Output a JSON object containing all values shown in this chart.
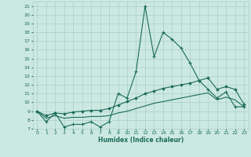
{
  "xlabel": "Humidex (Indice chaleur)",
  "xlim": [
    -0.5,
    23.5
  ],
  "ylim": [
    7,
    21.5
  ],
  "xticks": [
    0,
    1,
    2,
    3,
    4,
    5,
    6,
    7,
    8,
    9,
    10,
    11,
    12,
    13,
    14,
    15,
    16,
    17,
    18,
    19,
    20,
    21,
    22,
    23
  ],
  "yticks": [
    7,
    8,
    9,
    10,
    11,
    12,
    13,
    14,
    15,
    16,
    17,
    18,
    19,
    20,
    21
  ],
  "bg_color": "#cce9e1",
  "grid_color": "#aacfc8",
  "line_color": "#1a6b5a",
  "line1_y": [
    9.0,
    7.8,
    8.8,
    7.2,
    7.5,
    7.5,
    7.8,
    7.2,
    7.8,
    11.0,
    10.5,
    13.5,
    21.0,
    15.2,
    18.0,
    17.2,
    16.2,
    14.5,
    12.5,
    11.5,
    10.5,
    11.2,
    9.5,
    9.5
  ],
  "line2_y": [
    9.0,
    8.5,
    8.8,
    8.7,
    8.9,
    9.0,
    9.1,
    9.1,
    9.3,
    9.7,
    10.1,
    10.5,
    11.0,
    11.3,
    11.6,
    11.8,
    12.0,
    12.2,
    12.5,
    12.8,
    11.5,
    11.8,
    11.5,
    9.8
  ],
  "line3_y": [
    9.0,
    8.2,
    8.5,
    8.2,
    8.3,
    8.3,
    8.4,
    8.4,
    8.5,
    8.8,
    9.0,
    9.3,
    9.6,
    9.9,
    10.1,
    10.3,
    10.5,
    10.7,
    10.9,
    11.1,
    10.3,
    10.6,
    10.3,
    9.5
  ]
}
